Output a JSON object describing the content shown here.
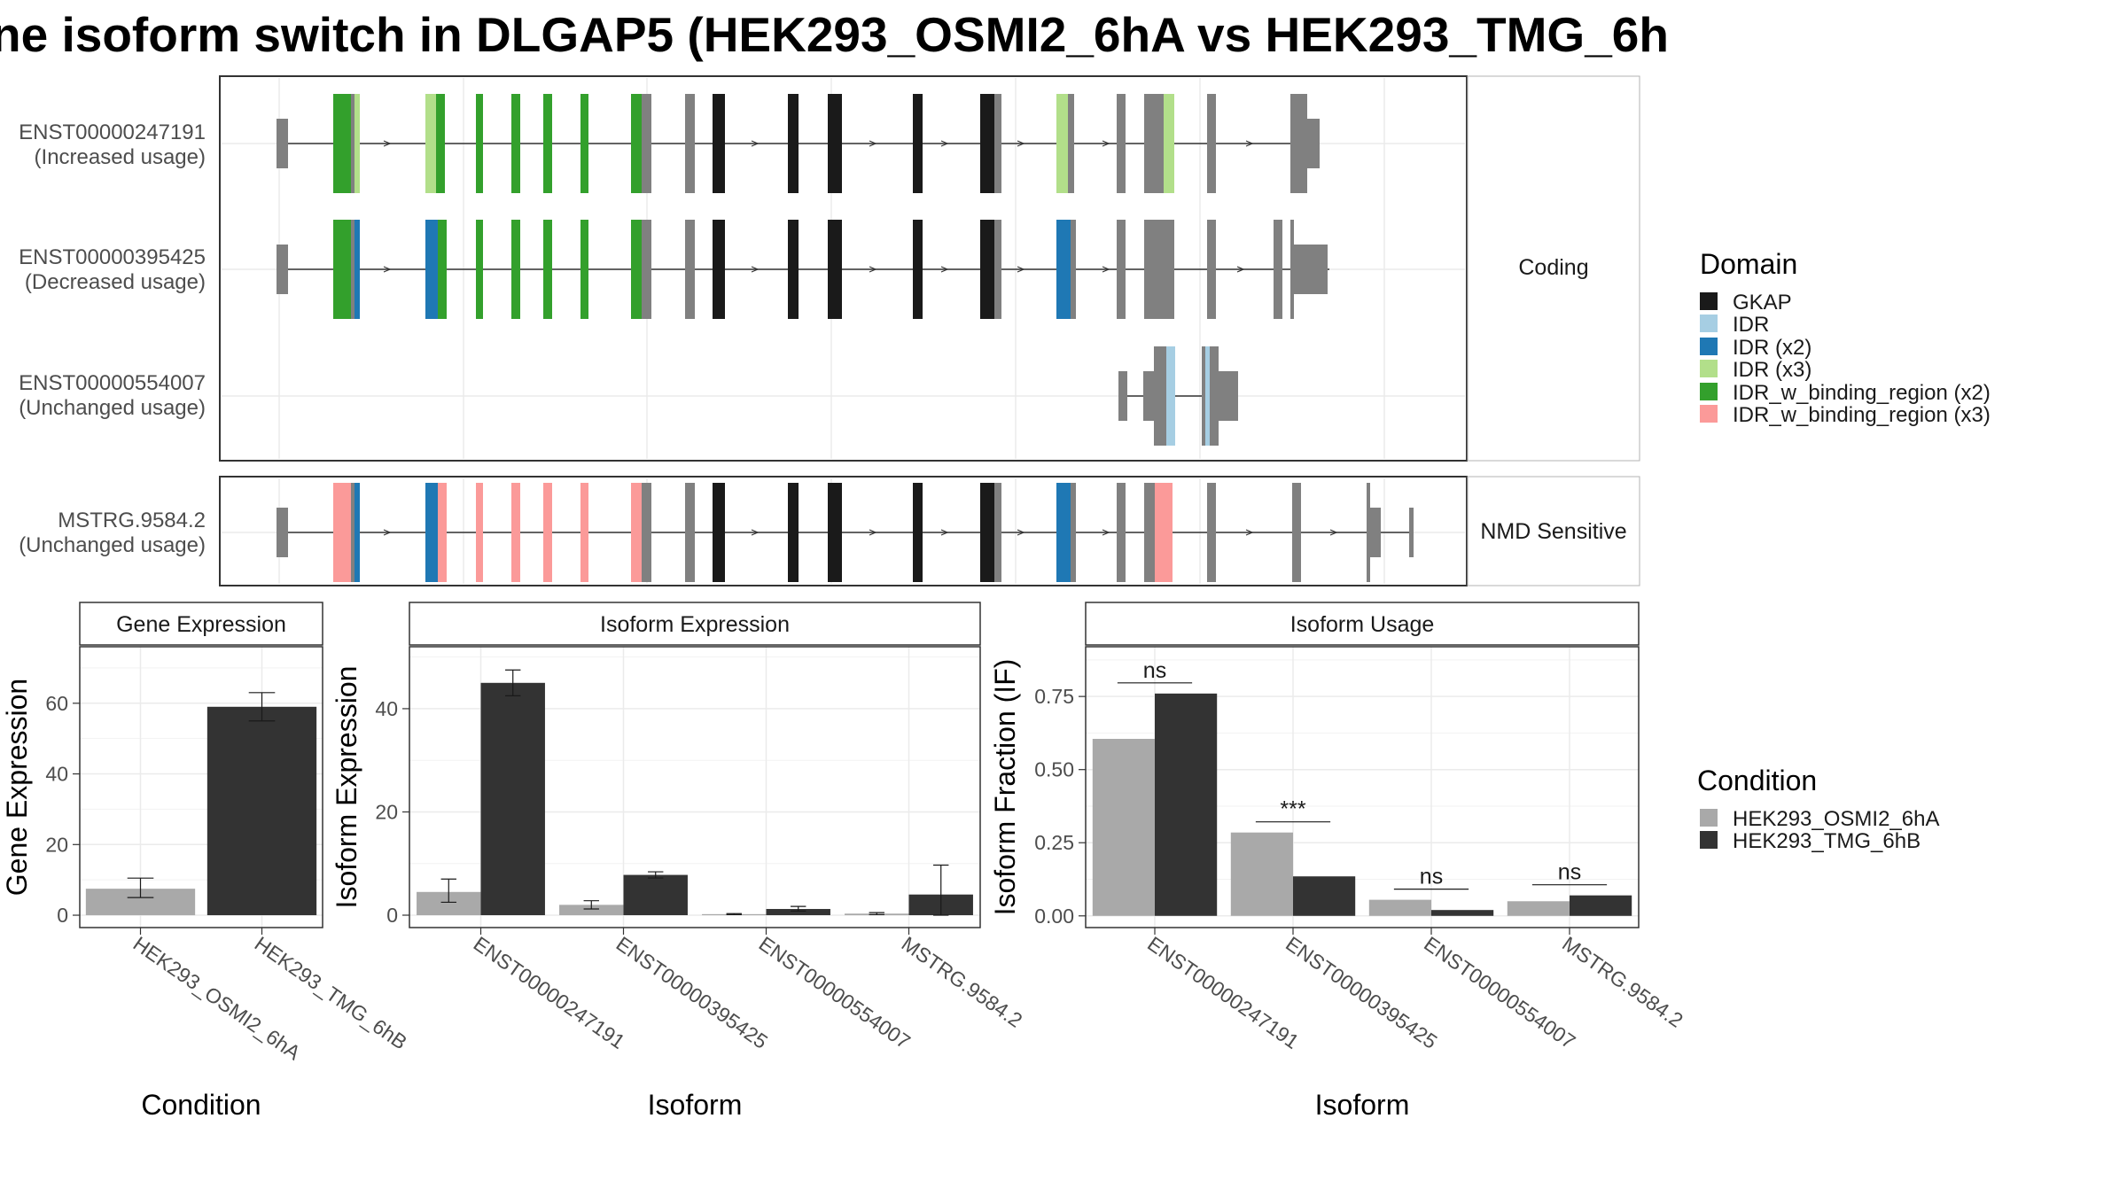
{
  "title": "ne isoform switch in DLGAP5 (HEK293_OSMI2_6hA vs HEK293_TMG_6h",
  "colors": {
    "GKAP": "#1a1a1a",
    "IDR": "#a6cee3",
    "IDR (x2)": "#1f78b4",
    "IDR (x3)": "#b2df8a",
    "IDR_w_binding_region (x2)": "#33a02c",
    "IDR_w_binding_region (x3)": "#fb9a99",
    "exon": "#808080",
    "cond1": "#a9a9a9",
    "cond2": "#333333"
  },
  "structure": {
    "facets": [
      "Coding",
      "NMD Sensitive"
    ],
    "transcripts": [
      {
        "id": "ENST00000247191",
        "usage": "(Increased usage)",
        "facet": "Coding"
      },
      {
        "id": "ENST00000395425",
        "usage": "(Decreased usage)",
        "facet": "Coding"
      },
      {
        "id": "ENST00000554007",
        "usage": "(Unchanged usage)",
        "facet": "Coding"
      },
      {
        "id": "MSTRG.9584.2",
        "usage": "(Unchanged usage)",
        "facet": "NMD Sensitive"
      }
    ]
  },
  "legend_domain": {
    "title": "Domain",
    "items": [
      "GKAP",
      "IDR",
      "IDR (x2)",
      "IDR (x3)",
      "IDR_w_binding_region (x2)",
      "IDR_w_binding_region (x3)"
    ]
  },
  "legend_condition": {
    "title": "Condition",
    "items": [
      "HEK293_OSMI2_6hA",
      "HEK293_TMG_6hB"
    ]
  },
  "chart_data": [
    {
      "type": "bar",
      "title": "Gene Expression",
      "xlabel": "Condition",
      "ylabel": "Gene Expression",
      "categories": [
        "HEK293_OSMI2_6hA",
        "HEK293_TMG_6hB"
      ],
      "values": [
        7.5,
        59
      ],
      "error_low": [
        5,
        55
      ],
      "error_high": [
        10.5,
        63
      ],
      "ylim": [
        -3.5,
        76
      ],
      "yticks": [
        0,
        20,
        40,
        60
      ]
    },
    {
      "type": "bar",
      "title": "Isoform Expression",
      "xlabel": "Isoform",
      "ylabel": "Isoform Expression",
      "categories": [
        "ENST00000247191",
        "ENST00000395425",
        "ENST00000554007",
        "MSTRG.9584.2"
      ],
      "series": [
        {
          "name": "HEK293_OSMI2_6hA",
          "values": [
            4.5,
            2,
            0.2,
            0.3
          ],
          "error_low": [
            2.5,
            1.2,
            0.1,
            0.1
          ],
          "error_high": [
            7,
            2.8,
            0.3,
            0.5
          ]
        },
        {
          "name": "HEK293_TMG_6hB",
          "values": [
            45,
            7.8,
            1.2,
            4
          ],
          "error_low": [
            42.5,
            7.2,
            0.8,
            0
          ],
          "error_high": [
            47.5,
            8.4,
            1.7,
            9.7
          ]
        }
      ],
      "ylim": [
        -2.4,
        52
      ],
      "yticks": [
        0,
        20,
        40
      ]
    },
    {
      "type": "bar",
      "title": "Isoform Usage",
      "xlabel": "Isoform",
      "ylabel": "Isoform Fraction (IF)",
      "categories": [
        "ENST00000247191",
        "ENST00000395425",
        "ENST00000554007",
        "MSTRG.9584.2"
      ],
      "series": [
        {
          "name": "HEK293_OSMI2_6hA",
          "values": [
            0.605,
            0.285,
            0.055,
            0.05
          ]
        },
        {
          "name": "HEK293_TMG_6hB",
          "values": [
            0.76,
            0.135,
            0.02,
            0.07
          ]
        }
      ],
      "annotations": [
        "ns",
        "***",
        "ns",
        "ns"
      ],
      "ylim": [
        -0.04,
        0.92
      ],
      "yticks": [
        0.0,
        0.25,
        0.5,
        0.75
      ],
      "ytick_labels": [
        "0.00",
        "0.25",
        "0.50",
        "0.75"
      ]
    }
  ]
}
